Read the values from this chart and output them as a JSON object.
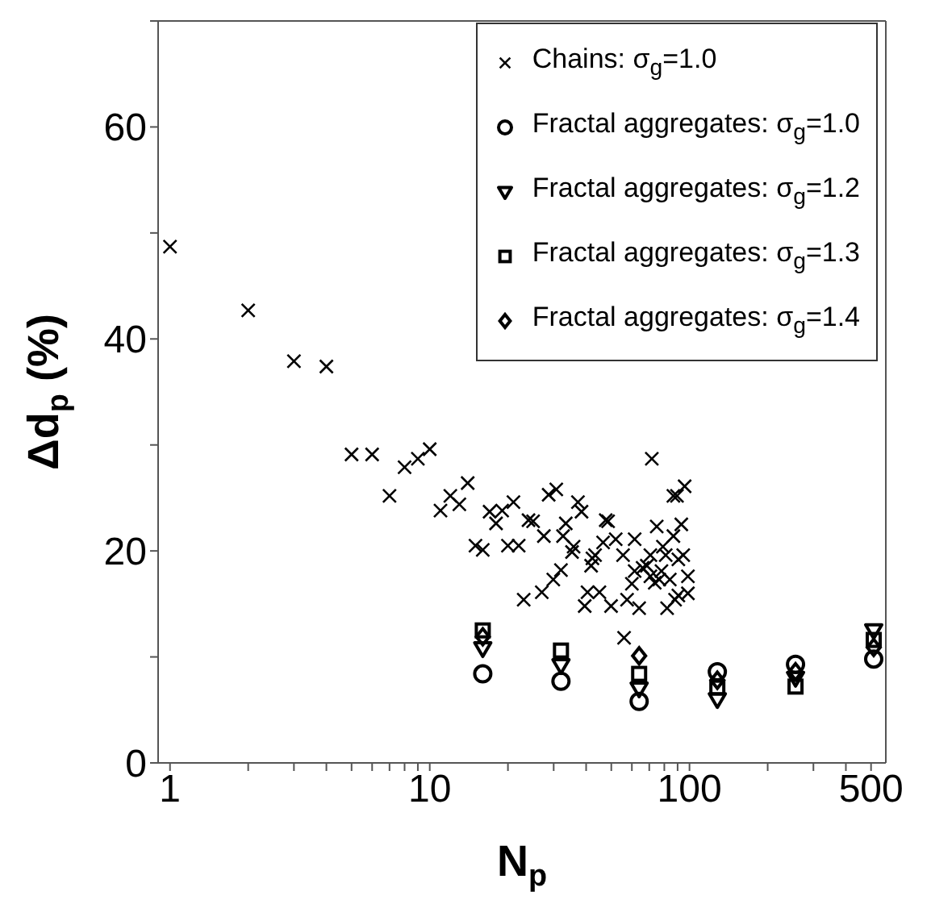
{
  "chart_data": {
    "type": "scatter",
    "xlabel": "N$_{p}$",
    "ylabel": "Δd$_{p}$ (%)",
    "log": "x",
    "grid": false,
    "legend": "top right",
    "xlim": [
      0.9,
      570
    ],
    "ylim": [
      0,
      70
    ],
    "xticks": [
      1,
      {
        "value": 2,
        "label": null
      },
      {
        "value": 3,
        "label": null
      },
      {
        "value": 4,
        "label": null
      },
      {
        "value": 5,
        "label": null
      },
      {
        "value": 6,
        "label": null
      },
      {
        "value": 7,
        "label": null
      },
      {
        "value": 8,
        "label": null
      },
      {
        "value": 9,
        "label": null
      },
      10,
      {
        "value": 20,
        "label": null
      },
      {
        "value": 30,
        "label": null
      },
      {
        "value": 40,
        "label": null
      },
      {
        "value": 50,
        "label": null
      },
      {
        "value": 60,
        "label": null
      },
      {
        "value": 70,
        "label": null
      },
      {
        "value": 80,
        "label": null
      },
      {
        "value": 90,
        "label": null
      },
      100,
      {
        "value": 200,
        "label": null
      },
      {
        "value": 300,
        "label": null
      },
      {
        "value": 400,
        "label": null
      },
      500
    ],
    "yticks": [
      0,
      {
        "value": 10,
        "label": null
      },
      20,
      {
        "value": 30,
        "label": null
      },
      40,
      {
        "value": 50,
        "label": null
      },
      60,
      {
        "value": 70,
        "label": null
      }
    ],
    "series": [
      {
        "name": "Chains: σ$_{g}$=1.0",
        "color": "#000000",
        "marker": "cross",
        "x": [
          1,
          2,
          3,
          4,
          5,
          6,
          7,
          8,
          9,
          10,
          11,
          12,
          13,
          14,
          15,
          16,
          17,
          18,
          19,
          20,
          21,
          22,
          23,
          24,
          25,
          27,
          27.5,
          28.7,
          30.7,
          29.9,
          32,
          33.4,
          32.6,
          35.3,
          35.8,
          37.2,
          38.4,
          39.5,
          40.5,
          41.8,
          43.3,
          45,
          47.6,
          46.5,
          49.9,
          52,
          56,
          57.5,
          61.5,
          64,
          71.6,
          74.8,
          70.7,
          81,
          82,
          86.7,
          89.5,
          95.8,
          93,
          98.6,
          98.6,
          94.6,
          88,
          86.7,
          79,
          84,
          76.5,
          70.7,
          66,
          61.5,
          60,
          55.5,
          48.6,
          42.3,
          90.6,
          73.5,
          68.5,
          78,
          90.6
        ],
        "values": [
          48.7,
          42.7,
          37.9,
          37.4,
          29.1,
          29.1,
          25.2,
          27.9,
          28.7,
          29.6,
          23.8,
          25.2,
          24.4,
          26.4,
          20.5,
          20.1,
          23.7,
          22.6,
          23.8,
          20.5,
          24.6,
          20.5,
          15.4,
          22.9,
          22.8,
          16.1,
          21.4,
          25.3,
          25.8,
          17.3,
          18.2,
          22.6,
          21.4,
          19.9,
          20.4,
          24.6,
          23.7,
          14.8,
          16.1,
          18.6,
          19.6,
          16.1,
          22.9,
          20.8,
          14.8,
          21.1,
          11.8,
          15.4,
          21.1,
          14.6,
          28.7,
          22.3,
          19.6,
          19.6,
          14.6,
          25.2,
          25.2,
          26.1,
          22.5,
          17.6,
          16.0,
          19.6,
          15.4,
          21.4,
          20.4,
          17.3,
          17.3,
          17.6,
          18.4,
          18.1,
          16.9,
          19.6,
          22.8,
          19.3,
          19.2,
          17.0,
          18.6,
          18.1,
          15.8
        ]
      },
      {
        "name": "Fractal aggregates: σ$_{g}$=1.0",
        "color": "#000000",
        "marker": "circle",
        "x": [
          16,
          32,
          64,
          128,
          256,
          512
        ],
        "values": [
          8.4,
          7.7,
          5.8,
          8.6,
          9.3,
          9.8
        ]
      },
      {
        "name": "Fractal aggregates: σ$_{g}$=1.2",
        "color": "#000000",
        "marker": "triangle",
        "x": [
          16,
          32,
          64,
          128,
          256,
          512
        ],
        "values": [
          10.8,
          9.2,
          7.0,
          6.0,
          8.0,
          12.5
        ]
      },
      {
        "name": "Fractal aggregates: σ$_{g}$=1.3",
        "color": "#000000",
        "marker": "square",
        "x": [
          16,
          32,
          64,
          128,
          256,
          512
        ],
        "values": [
          12.5,
          10.6,
          8.4,
          7.1,
          7.2,
          11.6
        ]
      },
      {
        "name": "Fractal aggregates: σ$_{g}$=1.4",
        "color": "#000000",
        "marker": "diamond",
        "x": [
          16,
          32,
          64,
          128,
          256,
          512
        ],
        "values": [
          11.9,
          null,
          10.1,
          7.8,
          8.6,
          10.9
        ]
      }
    ]
  }
}
